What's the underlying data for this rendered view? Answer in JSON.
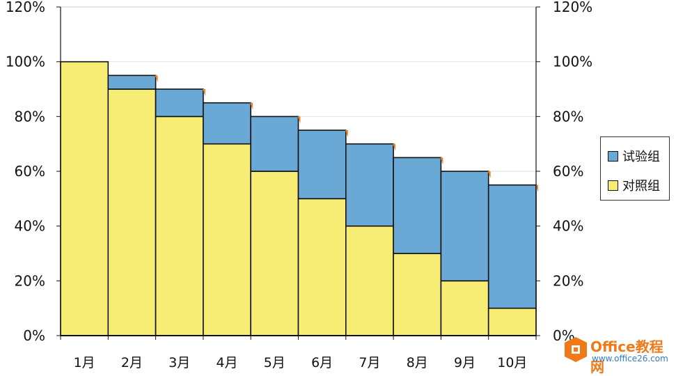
{
  "chart_data": {
    "type": "bar",
    "stacked": true,
    "categories": [
      "1月",
      "2月",
      "3月",
      "4月",
      "5月",
      "6月",
      "7月",
      "8月",
      "9月",
      "10月"
    ],
    "series": [
      {
        "name": "对照组",
        "values": [
          100,
          90,
          80,
          70,
          60,
          50,
          40,
          30,
          20,
          10
        ],
        "color": "#f7ec74"
      },
      {
        "name": "试验组",
        "values": [
          0,
          5,
          10,
          15,
          20,
          25,
          30,
          35,
          40,
          45
        ],
        "color": "#6aa8d6"
      }
    ],
    "marker_color": "#e8842c",
    "ylim": [
      0,
      120
    ],
    "yticks": [
      "0%",
      "20%",
      "40%",
      "60%",
      "80%",
      "100%",
      "120%"
    ],
    "secondary_yaxis": true,
    "grid": true,
    "legend_position": "right",
    "title": "",
    "xlabel": "",
    "ylabel": ""
  },
  "legend": {
    "items": [
      {
        "label": "试验组",
        "color": "#6aa8d6"
      },
      {
        "label": "对照组",
        "color": "#f7ec74"
      }
    ]
  },
  "watermark": {
    "title": "Office教程网",
    "url": "www.office26.com",
    "icon": "office-logo-icon"
  }
}
